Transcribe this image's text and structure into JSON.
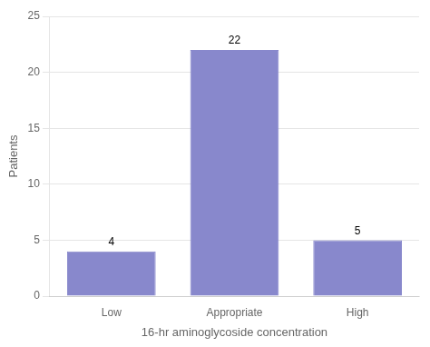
{
  "chart_data": {
    "type": "bar",
    "categories": [
      "Low",
      "Appropriate",
      "High"
    ],
    "values": [
      4,
      22,
      5
    ],
    "color": "#8888cc",
    "xlabel": "16-hr aminoglycoside concentration",
    "ylabel": "Patients",
    "ylim": [
      0,
      25
    ],
    "yticks": [
      0,
      5,
      10,
      15,
      20,
      25
    ],
    "grid": true,
    "data_labels": true
  }
}
